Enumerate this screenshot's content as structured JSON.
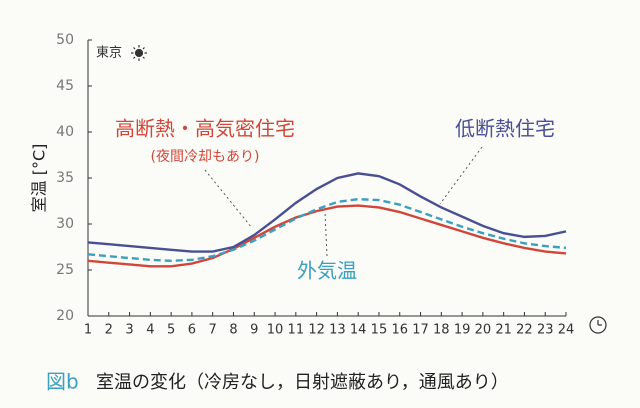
{
  "chart_data": {
    "type": "line",
    "location_label": "東京",
    "ylabel": "室温 [°C]",
    "annotation": "(夜間冷却もあり)",
    "caption_label": "図b",
    "caption": "室温の変化（冷房なし，日射遮蔽あり，通風あり）",
    "x": [
      1,
      2,
      3,
      4,
      5,
      6,
      7,
      8,
      9,
      10,
      11,
      12,
      13,
      14,
      15,
      16,
      17,
      18,
      19,
      20,
      21,
      22,
      23,
      24
    ],
    "xlim": [
      1,
      24
    ],
    "xticks": [
      1,
      2,
      3,
      4,
      5,
      6,
      7,
      8,
      9,
      10,
      11,
      12,
      13,
      14,
      15,
      16,
      17,
      18,
      19,
      20,
      21,
      22,
      23,
      24
    ],
    "ylim": [
      20,
      50
    ],
    "yticks": [
      20,
      25,
      30,
      35,
      40,
      45,
      50
    ],
    "grid": false,
    "series": [
      {
        "name": "高断熱・高気密住宅",
        "color": "#d0473a",
        "dashed": false,
        "values": [
          26.0,
          25.8,
          25.6,
          25.4,
          25.4,
          25.7,
          26.3,
          27.3,
          28.5,
          29.7,
          30.7,
          31.4,
          31.9,
          32.0,
          31.8,
          31.3,
          30.6,
          29.9,
          29.2,
          28.5,
          27.9,
          27.4,
          27.0,
          26.8
        ]
      },
      {
        "name": "低断熱住宅",
        "color": "#4a4f93",
        "dashed": false,
        "values": [
          28.0,
          27.8,
          27.6,
          27.4,
          27.2,
          27.0,
          27.0,
          27.5,
          28.8,
          30.5,
          32.3,
          33.8,
          35.0,
          35.5,
          35.2,
          34.3,
          33.0,
          31.8,
          30.8,
          29.8,
          29.0,
          28.6,
          28.7,
          29.2
        ]
      },
      {
        "name": "外気温",
        "color": "#3a9fc0",
        "dashed": true,
        "values": [
          26.7,
          26.5,
          26.3,
          26.1,
          26.0,
          26.1,
          26.5,
          27.2,
          28.2,
          29.4,
          30.6,
          31.6,
          32.4,
          32.7,
          32.6,
          32.1,
          31.3,
          30.5,
          29.7,
          29.0,
          28.4,
          27.9,
          27.6,
          27.4
        ]
      }
    ]
  }
}
